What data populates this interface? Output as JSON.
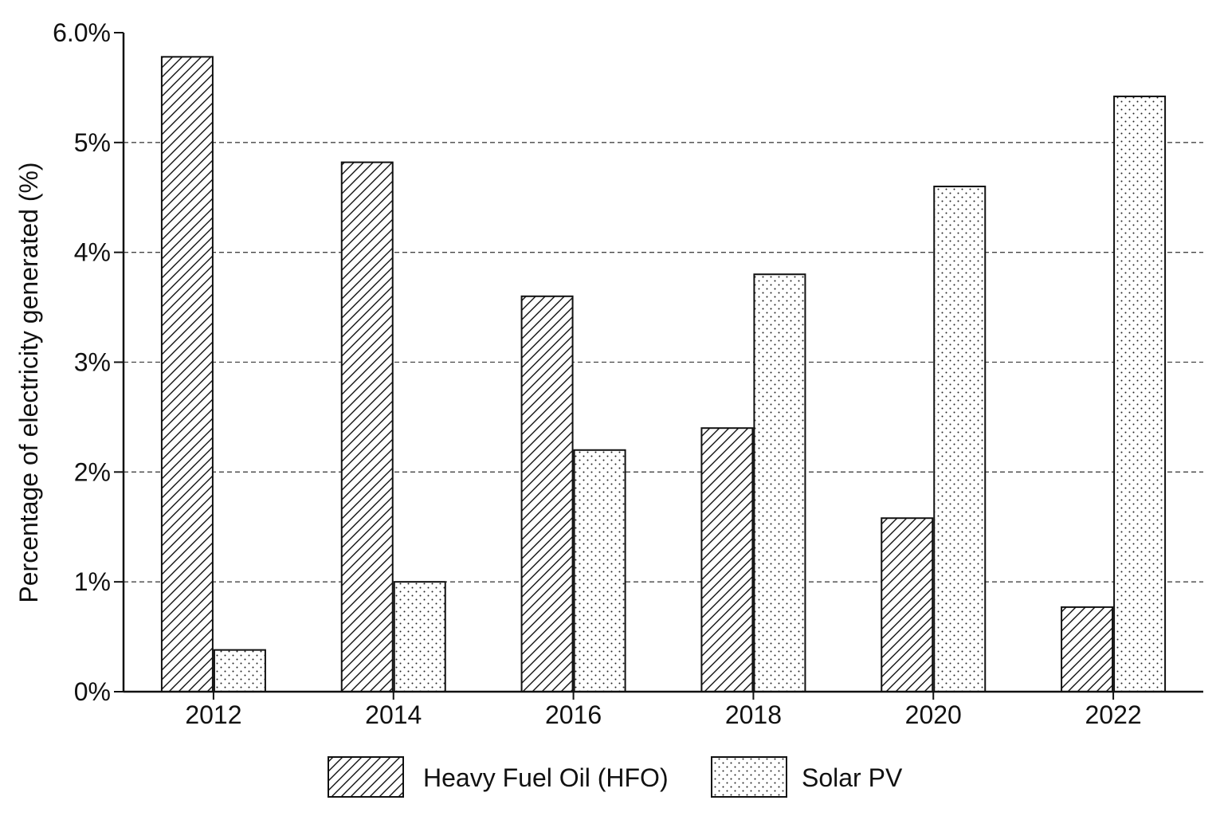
{
  "chart_data": {
    "type": "bar",
    "title": "",
    "xlabel": "",
    "ylabel": "Percentage of electricity generated (%)",
    "categories": [
      "2012",
      "2014",
      "2016",
      "2018",
      "2020",
      "2022"
    ],
    "series": [
      {
        "name": "Heavy Fuel Oil (HFO)",
        "values": [
          5.78,
          4.82,
          3.6,
          2.4,
          1.58,
          0.77
        ],
        "pattern": "hatch"
      },
      {
        "name": "Solar PV",
        "values": [
          0.38,
          1.0,
          2.2,
          3.8,
          4.6,
          5.42
        ],
        "pattern": "dots"
      }
    ],
    "ylim": [
      0,
      6
    ],
    "yticks": [
      {
        "value": 0,
        "label": "0%"
      },
      {
        "value": 1,
        "label": "1%"
      },
      {
        "value": 2,
        "label": "2%"
      },
      {
        "value": 3,
        "label": "3%"
      },
      {
        "value": 4,
        "label": "4%"
      },
      {
        "value": 5,
        "label": "5%"
      },
      {
        "value": 6,
        "label": "6.0%"
      }
    ],
    "grid": "horizontal dashed",
    "legend_position": "bottom-center",
    "colors": {
      "stroke": "#111111",
      "fill": "#ffffff",
      "grid": "#444444"
    }
  }
}
